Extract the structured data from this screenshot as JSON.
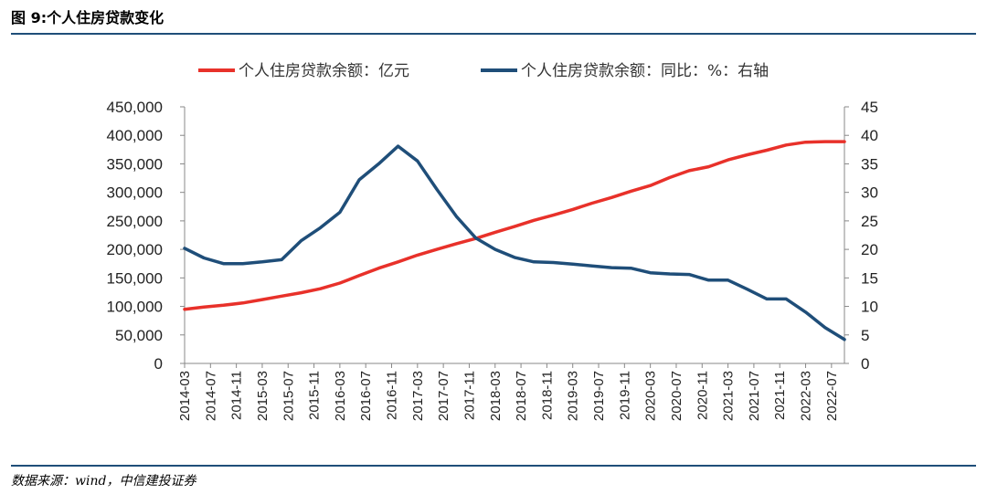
{
  "figure": {
    "title": "图 9:个人住房贷款变化",
    "source": "数据来源：wind，中信建投证券"
  },
  "colors": {
    "series_left": "#e8312a",
    "series_right": "#1f4e79",
    "rule": "#1f4e79"
  },
  "chart_data": {
    "type": "line",
    "title": "",
    "xlabel": "",
    "ylabel": "",
    "y2label": "",
    "ylim": [
      0,
      450000
    ],
    "y2lim": [
      0,
      45
    ],
    "yticks": [
      "450,000",
      "400,000",
      "350,000",
      "300,000",
      "250,000",
      "200,000",
      "150,000",
      "100,000",
      "50,000",
      "0"
    ],
    "y2ticks": [
      "45",
      "40",
      "35",
      "30",
      "25",
      "20",
      "15",
      "10",
      "5",
      "0"
    ],
    "xtick_labels": [
      "2014-03",
      "2014-07",
      "2014-11",
      "2015-03",
      "2015-07",
      "2015-11",
      "2016-03",
      "2016-07",
      "2016-11",
      "2017-03",
      "2017-07",
      "2017-11",
      "2018-03",
      "2018-07",
      "2018-11",
      "2019-03",
      "2019-07",
      "2019-11",
      "2020-03",
      "2020-07",
      "2020-11",
      "2021-03",
      "2021-07",
      "2021-11",
      "2022-03",
      "2022-07"
    ],
    "x": [
      "2014-03",
      "2014-06",
      "2014-09",
      "2014-12",
      "2015-03",
      "2015-06",
      "2015-09",
      "2015-12",
      "2016-03",
      "2016-06",
      "2016-09",
      "2016-12",
      "2017-03",
      "2017-06",
      "2017-09",
      "2017-12",
      "2018-03",
      "2018-06",
      "2018-09",
      "2018-12",
      "2019-03",
      "2019-06",
      "2019-09",
      "2019-12",
      "2020-03",
      "2020-06",
      "2020-09",
      "2020-12",
      "2021-03",
      "2021-06",
      "2021-09",
      "2021-12",
      "2022-03",
      "2022-06",
      "2022-09"
    ],
    "legend_position": "top",
    "series": [
      {
        "name": "个人住房贷款余额：亿元",
        "axis": "left",
        "values": [
          95000,
          99000,
          102000,
          106000,
          112000,
          118000,
          124000,
          131000,
          141000,
          154000,
          167000,
          178000,
          190000,
          200000,
          210000,
          219000,
          230000,
          240000,
          251000,
          260000,
          270000,
          281000,
          291000,
          302000,
          312000,
          326000,
          338000,
          345000,
          357000,
          366000,
          374000,
          383000,
          388000,
          389000,
          389000
        ]
      },
      {
        "name": "个人住房贷款余额：同比：%：右轴",
        "axis": "right",
        "values": [
          20.2,
          18.5,
          17.5,
          17.5,
          17.8,
          18.2,
          21.5,
          23.8,
          26.5,
          32.2,
          35.0,
          38.1,
          35.5,
          30.5,
          25.8,
          22.0,
          20.0,
          18.6,
          17.8,
          17.7,
          17.4,
          17.1,
          16.8,
          16.7,
          15.9,
          15.7,
          15.6,
          14.6,
          14.6,
          13.0,
          11.3,
          11.3,
          9.0,
          6.3,
          4.2
        ]
      }
    ]
  }
}
